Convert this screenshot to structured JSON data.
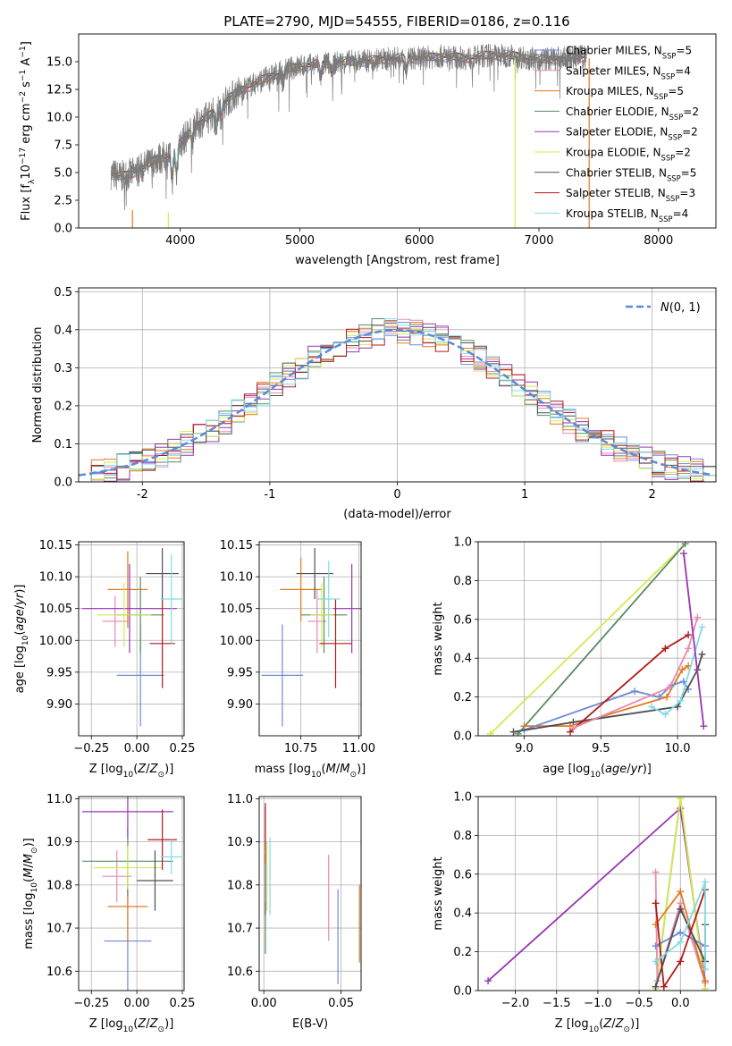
{
  "figure_title": "PLATE=2790, MJD=54555, FIBERID=0186, z=0.116",
  "colors": {
    "chabrier_miles": "#6e8ad6",
    "salpeter_miles": "#e88aaf",
    "kroupa_miles": "#e37a1d",
    "chabrier_elodie": "#5a8a63",
    "salpeter_elodie": "#9a35b3",
    "kroupa_elodie": "#d4ea4e",
    "chabrier_stelib": "#505050",
    "salpeter_stelib": "#b21a1a",
    "kroupa_stelib": "#82dbe6",
    "normal": "#5b8ad6"
  },
  "chart_data": [
    {
      "id": "spectrum",
      "type": "line",
      "xlabel": "wavelength [Angstrom, rest frame]",
      "ylabel": "Flux [f_λ10^-17 erg cm^-2 s^-1 A^-1]",
      "xlim": [
        3150,
        8480
      ],
      "ylim": [
        0,
        17.5
      ],
      "xticks": [
        4000,
        5000,
        6000,
        7000,
        8000
      ],
      "yticks": [
        0.0,
        2.5,
        5.0,
        7.5,
        10.0,
        12.5,
        15.0
      ],
      "grid": false,
      "legend_position": "top-right",
      "legend": [
        {
          "label": "Chabrier MILES, N",
          "sub": "SSP",
          "post": "=5",
          "color": "#6e8ad6"
        },
        {
          "label": "Salpeter MILES, N",
          "sub": "SSP",
          "post": "=4",
          "color": "#e88aaf"
        },
        {
          "label": "Kroupa MILES, N",
          "sub": "SSP",
          "post": "=5",
          "color": "#e37a1d"
        },
        {
          "label": "Chabrier ELODIE, N",
          "sub": "SSP",
          "post": "=2",
          "color": "#5a8a63"
        },
        {
          "label": "Salpeter ELODIE, N",
          "sub": "SSP",
          "post": "=2",
          "color": "#9a35b3"
        },
        {
          "label": "Kroupa ELODIE, N",
          "sub": "SSP",
          "post": "=2",
          "color": "#d4ea4e"
        },
        {
          "label": "Chabrier STELIB, N",
          "sub": "SSP",
          "post": "=5",
          "color": "#505050"
        },
        {
          "label": "Salpeter STELIB, N",
          "sub": "SSP",
          "post": "=3",
          "color": "#b21a1a"
        },
        {
          "label": "Kroupa STELIB, N",
          "sub": "SSP",
          "post": "=4",
          "color": "#82dbe6"
        }
      ],
      "continuum": {
        "x": [
          3400,
          3500,
          3600,
          3700,
          3800,
          3900,
          4000,
          4100,
          4200,
          4300,
          4400,
          4500,
          4600,
          4700,
          4800,
          4900,
          5000,
          5200,
          5400,
          5600,
          5800,
          6000,
          6200,
          6400,
          6600,
          6800,
          7000,
          7200,
          7400
        ],
        "y": [
          5.0,
          4.6,
          4.9,
          5.5,
          6.2,
          6.5,
          7.6,
          9.0,
          9.8,
          10.6,
          11.6,
          12.4,
          12.9,
          13.4,
          13.9,
          14.3,
          14.6,
          14.8,
          15.0,
          15.1,
          15.3,
          15.3,
          15.5,
          15.3,
          15.6,
          15.5,
          15.2,
          15.3,
          15.5
        ]
      },
      "absorption_features": [
        {
          "x": 3933,
          "depth": 2.5
        },
        {
          "x": 3968,
          "depth": 2.3
        },
        {
          "x": 4101,
          "depth": 1.2
        },
        {
          "x": 4300,
          "depth": 1.5
        },
        {
          "x": 4340,
          "depth": 0.8
        },
        {
          "x": 4861,
          "depth": 0.8
        },
        {
          "x": 5175,
          "depth": 1.2
        },
        {
          "x": 5270,
          "depth": 0.8
        },
        {
          "x": 5890,
          "depth": 1.2
        }
      ],
      "artifacts": [
        {
          "x": 3600,
          "ymax": 1.6,
          "color": "#e37a1d"
        },
        {
          "x": 3900,
          "ymax": 1.4,
          "color": "#d4ea4e"
        },
        {
          "x": 6800,
          "ymax": 15.3,
          "color": "#d4ea4e"
        },
        {
          "x": 7420,
          "ymax": 15.3,
          "color": "#e37a1d"
        }
      ]
    },
    {
      "id": "residuals",
      "type": "histogram",
      "xlabel": "(data-model)/error",
      "ylabel": "Normed distribution",
      "xlim": [
        -2.5,
        2.5
      ],
      "ylim": [
        0,
        0.51
      ],
      "xticks": [
        -2,
        -1,
        0,
        1,
        2
      ],
      "yticks": [
        0.0,
        0.1,
        0.2,
        0.3,
        0.4,
        0.5
      ],
      "grid": true,
      "bin_width": 0.1,
      "legend_position": "top-right",
      "legend_label": "N(0,1)",
      "normal": {
        "mean": 0,
        "sigma": 1
      },
      "jitter_scale": 0.035
    },
    {
      "id": "age_vs_Z",
      "type": "errorbar",
      "xlabel": "Z [log10(Z/Z_sun)]",
      "ylabel": "age [log10(age/yr)]",
      "xlim": [
        -0.32,
        0.26
      ],
      "ylim": [
        9.85,
        10.155
      ],
      "xticks": [
        -0.25,
        0.0,
        0.25
      ],
      "xticklabels": [
        "−0.25",
        "0.00",
        "0.25"
      ],
      "yticks": [
        9.9,
        9.95,
        10.0,
        10.05,
        10.1,
        10.15
      ],
      "yticklabels": [
        "9.90",
        "9.95",
        "10.00",
        "10.05",
        "10.10",
        "10.15"
      ],
      "grid": true,
      "points": [
        {
          "x": 0.02,
          "y": 9.945,
          "xerr": 0.13,
          "yerr": 0.08,
          "color": "#6e8ad6"
        },
        {
          "x": -0.12,
          "y": 10.03,
          "xerr": 0.07,
          "yerr": 0.04,
          "color": "#e88aaf"
        },
        {
          "x": -0.05,
          "y": 10.08,
          "xerr": 0.11,
          "yerr": 0.06,
          "color": "#e37a1d"
        },
        {
          "x": 0.02,
          "y": 10.04,
          "xerr": 0.13,
          "yerr": 0.06,
          "color": "#5a8a63"
        },
        {
          "x": -0.04,
          "y": 10.05,
          "xerr": 0.26,
          "yerr": 0.07,
          "color": "#9a35b3"
        },
        {
          "x": -0.07,
          "y": 10.04,
          "xerr": 0.15,
          "yerr": 0.05,
          "color": "#d4ea4e"
        },
        {
          "x": 0.14,
          "y": 10.105,
          "xerr": 0.09,
          "yerr": 0.04,
          "color": "#505050"
        },
        {
          "x": 0.14,
          "y": 9.995,
          "xerr": 0.07,
          "yerr": 0.07,
          "color": "#b21a1a"
        },
        {
          "x": 0.19,
          "y": 10.065,
          "xerr": 0.06,
          "yerr": 0.07,
          "color": "#82dbe6"
        }
      ]
    },
    {
      "id": "age_vs_mass",
      "type": "errorbar",
      "xlabel": "mass [log10(M/M_sun)]",
      "ylabel": "",
      "xlim": [
        10.57,
        11.01
      ],
      "ylim": [
        9.85,
        10.155
      ],
      "xticks": [
        10.75,
        11.0
      ],
      "xticklabels": [
        "10.75",
        "11.00"
      ],
      "yticks": [
        9.9,
        9.95,
        10.0,
        10.05,
        10.1,
        10.15
      ],
      "yticklabels": [
        "9.90",
        "9.95",
        "10.00",
        "10.05",
        "10.10",
        "10.15"
      ],
      "grid": true,
      "points": [
        {
          "x": 10.67,
          "y": 9.945,
          "xerr": 0.09,
          "yerr": 0.08,
          "color": "#6e8ad6"
        },
        {
          "x": 10.82,
          "y": 10.03,
          "xerr": 0.04,
          "yerr": 0.05,
          "color": "#e88aaf"
        },
        {
          "x": 10.75,
          "y": 10.08,
          "xerr": 0.09,
          "yerr": 0.05,
          "color": "#e37a1d"
        },
        {
          "x": 10.85,
          "y": 10.04,
          "xerr": 0.1,
          "yerr": 0.06,
          "color": "#5a8a63"
        },
        {
          "x": 10.97,
          "y": 10.05,
          "xerr": 0.08,
          "yerr": 0.07,
          "color": "#9a35b3"
        },
        {
          "x": 10.84,
          "y": 10.04,
          "xerr": 0.05,
          "yerr": 0.05,
          "color": "#d4ea4e"
        },
        {
          "x": 10.81,
          "y": 10.105,
          "xerr": 0.08,
          "yerr": 0.04,
          "color": "#505050"
        },
        {
          "x": 10.9,
          "y": 9.995,
          "xerr": 0.07,
          "yerr": 0.07,
          "color": "#b21a1a"
        },
        {
          "x": 10.87,
          "y": 10.065,
          "xerr": 0.05,
          "yerr": 0.06,
          "color": "#82dbe6"
        }
      ]
    },
    {
      "id": "mass_weight_vs_age",
      "type": "line",
      "xlabel": "age [log10(age/yr)]",
      "ylabel": "mass weight",
      "xlim": [
        8.7,
        10.25
      ],
      "ylim": [
        0,
        1.0
      ],
      "xticks": [
        9.0,
        9.5,
        10.0
      ],
      "xticklabels": [
        "9.0",
        "9.5",
        "10.0"
      ],
      "yticks": [
        0.0,
        0.2,
        0.4,
        0.6,
        0.8,
        1.0
      ],
      "yticklabels": [
        "0.0",
        "0.2",
        "0.4",
        "0.6",
        "0.8",
        "1.0"
      ],
      "grid": true,
      "series": [
        {
          "color": "#d4ea4e",
          "x": [
            8.78,
            10.05
          ],
          "y": [
            0.01,
            0.99
          ]
        },
        {
          "color": "#5a8a63",
          "x": [
            8.96,
            10.05
          ],
          "y": [
            0.01,
            0.99
          ]
        },
        {
          "color": "#e37a1d",
          "x": [
            9.0,
            9.3,
            9.93,
            10.03,
            10.07
          ],
          "y": [
            0.05,
            0.05,
            0.2,
            0.34,
            0.36
          ]
        },
        {
          "color": "#6e8ad6",
          "x": [
            9.0,
            9.72,
            9.88,
            9.96,
            10.04,
            10.07
          ],
          "y": [
            0.03,
            0.23,
            0.2,
            0.26,
            0.28,
            0.24
          ]
        },
        {
          "color": "#505050",
          "x": [
            8.93,
            9.32,
            10.0,
            10.13,
            10.16
          ],
          "y": [
            0.02,
            0.07,
            0.15,
            0.34,
            0.42
          ]
        },
        {
          "color": "#b21a1a",
          "x": [
            9.3,
            9.92,
            10.07
          ],
          "y": [
            0.02,
            0.45,
            0.52
          ]
        },
        {
          "color": "#e88aaf",
          "x": [
            9.32,
            9.95,
            10.07,
            10.13
          ],
          "y": [
            0.04,
            0.25,
            0.45,
            0.61
          ]
        },
        {
          "color": "#82dbe6",
          "x": [
            9.83,
            9.92,
            10.02,
            10.16
          ],
          "y": [
            0.15,
            0.11,
            0.18,
            0.56
          ]
        },
        {
          "color": "#9a35b3",
          "x": [
            10.04,
            10.17
          ],
          "y": [
            0.94,
            0.05
          ]
        }
      ]
    },
    {
      "id": "mass_vs_Z",
      "type": "errorbar",
      "xlabel": "Z [log10(Z/Z_sun)]",
      "ylabel": "mass [log10(M/M_sun)]",
      "xlim": [
        -0.32,
        0.26
      ],
      "ylim": [
        10.555,
        11.005
      ],
      "xticks": [
        -0.25,
        0.0,
        0.25
      ],
      "xticklabels": [
        "−0.25",
        "0.00",
        "0.25"
      ],
      "yticks": [
        10.6,
        10.7,
        10.8,
        10.9,
        11.0
      ],
      "yticklabels": [
        "10.6",
        "10.7",
        "10.8",
        "10.9",
        "11.0"
      ],
      "grid": true,
      "points": [
        {
          "x": -0.05,
          "y": 10.67,
          "xerr": 0.13,
          "yerr": 0.12,
          "color": "#6e8ad6"
        },
        {
          "x": -0.11,
          "y": 10.82,
          "xerr": 0.08,
          "yerr": 0.06,
          "color": "#e88aaf"
        },
        {
          "x": -0.05,
          "y": 10.75,
          "xerr": 0.11,
          "yerr": 0.08,
          "color": "#e37a1d"
        },
        {
          "x": -0.05,
          "y": 10.855,
          "xerr": 0.25,
          "yerr": 0.08,
          "color": "#5a8a63"
        },
        {
          "x": -0.05,
          "y": 10.97,
          "xerr": 0.25,
          "yerr": 0.06,
          "color": "#9a35b3"
        },
        {
          "x": -0.05,
          "y": 10.84,
          "xerr": 0.19,
          "yerr": 0.05,
          "color": "#d4ea4e"
        },
        {
          "x": 0.1,
          "y": 10.81,
          "xerr": 0.1,
          "yerr": 0.07,
          "color": "#505050"
        },
        {
          "x": 0.14,
          "y": 10.905,
          "xerr": 0.08,
          "yerr": 0.07,
          "color": "#b21a1a"
        },
        {
          "x": 0.19,
          "y": 10.865,
          "xerr": 0.06,
          "yerr": 0.04,
          "color": "#82dbe6"
        }
      ]
    },
    {
      "id": "mass_vs_ebv",
      "type": "errorbar",
      "xlabel": "E(B-V)",
      "ylabel": "",
      "xlim": [
        -0.003,
        0.063
      ],
      "ylim": [
        10.555,
        11.005
      ],
      "xticks": [
        0.0,
        0.05
      ],
      "xticklabels": [
        "0.00",
        "0.05"
      ],
      "yticks": [
        10.6,
        10.7,
        10.8,
        10.9,
        11.0
      ],
      "yticklabels": [
        "10.6",
        "10.7",
        "10.8",
        "10.9",
        "11.0"
      ],
      "grid": true,
      "points": [
        {
          "x": 0.048,
          "y": 10.68,
          "xerr": 0,
          "yerr": 0.11,
          "color": "#6e8ad6"
        },
        {
          "x": 0.042,
          "y": 10.77,
          "xerr": 0,
          "yerr": 0.1,
          "color": "#e88aaf"
        },
        {
          "x": 0.062,
          "y": 10.71,
          "xerr": 0,
          "yerr": 0.09,
          "color": "#e37a1d"
        },
        {
          "x": 0.001,
          "y": 10.7,
          "xerr": 0,
          "yerr": 0.06,
          "color": "#5a8a63"
        },
        {
          "x": 0.001,
          "y": 10.93,
          "xerr": 0,
          "yerr": 0.05,
          "color": "#9a35b3"
        },
        {
          "x": 0.002,
          "y": 10.82,
          "xerr": 0,
          "yerr": 0.08,
          "color": "#d4ea4e"
        },
        {
          "x": 0.001,
          "y": 10.8,
          "xerr": 0,
          "yerr": 0.07,
          "color": "#505050"
        },
        {
          "x": 0.001,
          "y": 10.92,
          "xerr": 0,
          "yerr": 0.07,
          "color": "#b21a1a"
        },
        {
          "x": 0.004,
          "y": 10.82,
          "xerr": 0,
          "yerr": 0.09,
          "color": "#82dbe6"
        }
      ]
    },
    {
      "id": "mass_weight_vs_Z",
      "type": "line",
      "xlabel": "Z [log10(Z/Z_sun)]",
      "ylabel": "mass weight",
      "xlim": [
        -2.45,
        0.43
      ],
      "ylim": [
        0,
        1.0
      ],
      "xticks": [
        -2.0,
        -1.5,
        -1.0,
        -0.5,
        0.0
      ],
      "xticklabels": [
        "−2.0",
        "−1.5",
        "−1.0",
        "−0.5",
        "0.0"
      ],
      "yticks": [
        0.0,
        0.2,
        0.4,
        0.6,
        0.8,
        1.0
      ],
      "yticklabels": [
        "0.0",
        "0.2",
        "0.4",
        "0.6",
        "0.8",
        "1.0"
      ],
      "grid": true,
      "series": [
        {
          "color": "#9a35b3",
          "x": [
            -2.33,
            0.0,
            0.3
          ],
          "y": [
            0.05,
            0.94,
            0.05
          ]
        },
        {
          "color": "#5a8a63",
          "x": [
            -0.3,
            0.0,
            0.3
          ],
          "y": [
            0.01,
            0.99,
            0.01
          ]
        },
        {
          "color": "#d4ea4e",
          "x": [
            -0.3,
            0.0,
            0.3
          ],
          "y": [
            0.01,
            0.99,
            0.01
          ]
        },
        {
          "color": "#e88aaf",
          "x": [
            -0.3,
            -0.28,
            0.0,
            0.3
          ],
          "y": [
            0.61,
            0.05,
            0.45,
            0.04
          ]
        },
        {
          "color": "#e37a1d",
          "x": [
            -0.3,
            0.0,
            0.3
          ],
          "y": [
            0.34,
            0.51,
            0.05
          ]
        },
        {
          "color": "#6e8ad6",
          "x": [
            -0.3,
            0.0,
            0.3
          ],
          "y": [
            0.23,
            0.3,
            0.23
          ]
        },
        {
          "color": "#505050",
          "x": [
            -0.3,
            0.0,
            0.3,
            0.3
          ],
          "y": [
            0.02,
            0.42,
            0.15,
            0.34
          ]
        },
        {
          "color": "#b21a1a",
          "x": [
            -0.3,
            -0.2,
            0.0,
            0.3
          ],
          "y": [
            0.45,
            0.02,
            0.15,
            0.52
          ]
        },
        {
          "color": "#82dbe6",
          "x": [
            -0.3,
            0.0,
            0.3,
            0.3
          ],
          "y": [
            0.15,
            0.25,
            0.56,
            0.11
          ]
        }
      ]
    }
  ]
}
